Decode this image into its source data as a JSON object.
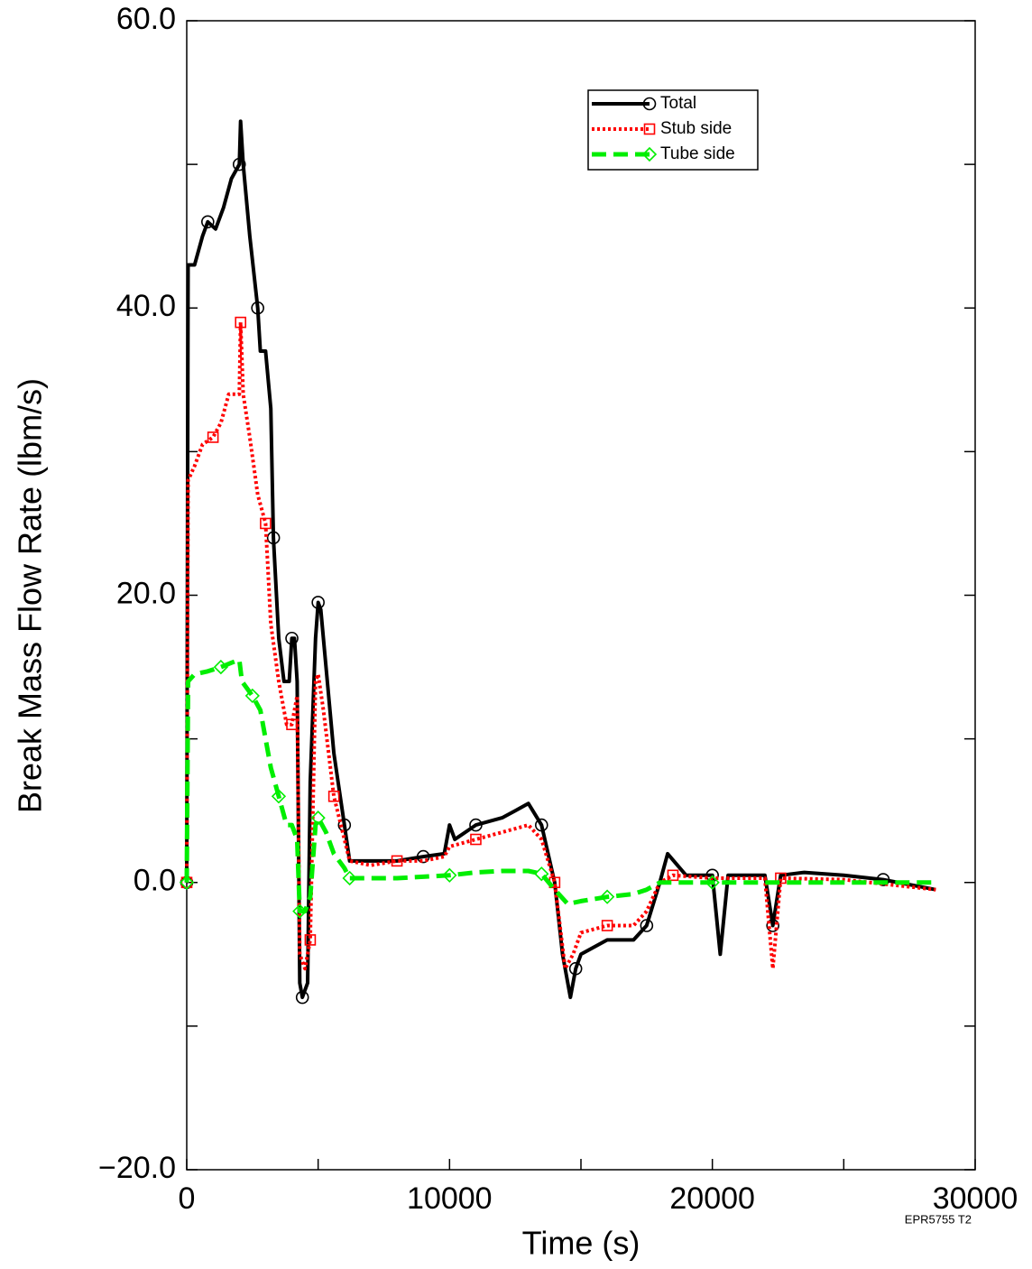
{
  "chart_data": {
    "type": "line",
    "xlabel": "Time (s)",
    "ylabel": "Break Mass Flow Rate (lbm/s)",
    "annotation": "EPR5755 T2",
    "xlim": [
      0,
      30000
    ],
    "ylim": [
      -20,
      60
    ],
    "xticks": [
      0,
      10000,
      20000,
      30000
    ],
    "xminorticks": [
      5000,
      15000,
      25000
    ],
    "yticks": [
      {
        "value": -20,
        "label": "−20.0"
      },
      {
        "value": 0,
        "label": "0.0"
      },
      {
        "value": 20,
        "label": "20.0"
      },
      {
        "value": 40,
        "label": "40.0"
      },
      {
        "value": 60,
        "label": "60.0"
      }
    ],
    "yminorticks": [
      -10,
      10,
      30,
      50
    ],
    "legend": "upper right",
    "series": [
      {
        "name": "Total",
        "color": "#000000",
        "style": "solid",
        "marker": "circle",
        "x": [
          0,
          50,
          300,
          600,
          800,
          1100,
          1400,
          1700,
          2000,
          2050,
          2150,
          2400,
          2700,
          2800,
          3000,
          3200,
          3300,
          3500,
          3700,
          3900,
          4000,
          4100,
          4200,
          4300,
          4400,
          4600,
          4700,
          4900,
          5000,
          5100,
          5300,
          5600,
          6000,
          6200,
          7000,
          8000,
          9000,
          9800,
          10000,
          10200,
          11000,
          12000,
          12500,
          13000,
          13500,
          14000,
          14300,
          14600,
          14800,
          15000,
          16000,
          17000,
          17500,
          18000,
          18300,
          19000,
          20000,
          20300,
          20600,
          22000,
          22300,
          22600,
          23500,
          25000,
          26500,
          28500
        ],
        "values": [
          0,
          43,
          43,
          45,
          46,
          45.5,
          47,
          49,
          50,
          53,
          50,
          45,
          40,
          37,
          37,
          33,
          24,
          17,
          14,
          14,
          17,
          17,
          14,
          -7,
          -8,
          -7,
          7,
          17,
          19.5,
          19,
          15,
          9,
          4,
          1.5,
          1.5,
          1.5,
          1.8,
          2,
          4,
          3,
          4,
          4.5,
          5,
          5.5,
          4,
          0,
          -5,
          -8,
          -6,
          -5,
          -4,
          -4,
          -3,
          0,
          2,
          0.5,
          0.5,
          -5,
          0.5,
          0.5,
          -3,
          0.5,
          0.7,
          0.5,
          0.2,
          -0.5
        ]
      },
      {
        "name": "Stub side",
        "color": "#ff0000",
        "style": "dotted",
        "marker": "square",
        "x": [
          0,
          50,
          300,
          600,
          1000,
          1300,
          1600,
          2000,
          2050,
          2150,
          2400,
          2700,
          3000,
          3200,
          3500,
          3800,
          4000,
          4200,
          4300,
          4500,
          4700,
          4900,
          5000,
          5200,
          5600,
          6000,
          6200,
          7000,
          8000,
          9000,
          9800,
          10000,
          11000,
          12000,
          13000,
          13500,
          14000,
          14400,
          14700,
          15000,
          16000,
          17000,
          17500,
          18000,
          18500,
          20000,
          22000,
          22300,
          22600,
          25000,
          28500
        ],
        "values": [
          0,
          28,
          29,
          30.5,
          31,
          32,
          34,
          34,
          39,
          34,
          31,
          27,
          25,
          18,
          14,
          11,
          11,
          13,
          -5,
          -6,
          -4,
          14,
          14.5,
          12,
          6,
          3,
          1.5,
          1.2,
          1.5,
          1.5,
          1.8,
          2.5,
          3,
          3.5,
          4,
          3,
          0,
          -6,
          -5,
          -3.5,
          -3,
          -3,
          -2,
          0,
          0.5,
          0.3,
          0.3,
          -6,
          0.3,
          0.2,
          -0.5
        ]
      },
      {
        "name": "Tube side",
        "color": "#00ee00",
        "style": "dashed",
        "marker": "diamond",
        "x": [
          0,
          50,
          300,
          800,
          1300,
          1700,
          2000,
          2100,
          2500,
          2800,
          3000,
          3200,
          3500,
          3800,
          4000,
          4200,
          4300,
          4500,
          4700,
          4900,
          5000,
          5300,
          5600,
          6000,
          6200,
          7000,
          8000,
          9000,
          10000,
          11000,
          12000,
          13000,
          13500,
          14000,
          14500,
          15000,
          16000,
          17000,
          17500,
          18000,
          20000,
          22000,
          25000,
          28500
        ],
        "values": [
          0,
          14,
          14.5,
          14.7,
          15,
          15.3,
          15.5,
          14,
          13,
          12,
          10,
          8,
          6,
          4,
          4,
          3,
          -2,
          -2,
          -1,
          4,
          4.5,
          3.5,
          2,
          1,
          0.3,
          0.3,
          0.3,
          0.4,
          0.5,
          0.7,
          0.8,
          0.8,
          0.6,
          -0.5,
          -1.5,
          -1.3,
          -1,
          -0.8,
          -0.5,
          0,
          0,
          0,
          0,
          0
        ]
      }
    ]
  }
}
